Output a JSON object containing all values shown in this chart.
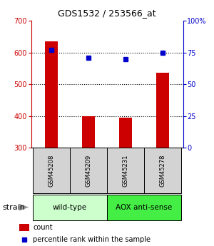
{
  "title": "GDS1532 / 253566_at",
  "samples": [
    "GSM45208",
    "GSM45209",
    "GSM45231",
    "GSM45278"
  ],
  "counts": [
    635,
    400,
    395,
    537
  ],
  "percentiles": [
    77,
    71,
    70,
    75
  ],
  "ylim_left": [
    300,
    700
  ],
  "ylim_right": [
    0,
    100
  ],
  "yticks_left": [
    300,
    400,
    500,
    600,
    700
  ],
  "yticks_right": [
    0,
    25,
    50,
    75,
    100
  ],
  "bar_color": "#cc0000",
  "dot_color": "#0000cc",
  "bar_width": 0.35,
  "groups": [
    {
      "label": "wild-type",
      "samples": [
        0,
        1
      ],
      "color": "#ccffcc"
    },
    {
      "label": "AOX anti-sense",
      "samples": [
        2,
        3
      ],
      "color": "#44ee44"
    }
  ],
  "sample_box_color": "#d3d3d3",
  "strain_label": "strain",
  "legend_count_label": "count",
  "legend_percentile_label": "percentile rank within the sample",
  "left_axis_color": "#cc0000",
  "right_axis_color": "#0000cc",
  "title_fontsize": 9,
  "tick_fontsize": 7,
  "sample_fontsize": 6,
  "group_fontsize": 7.5,
  "legend_fontsize": 7
}
